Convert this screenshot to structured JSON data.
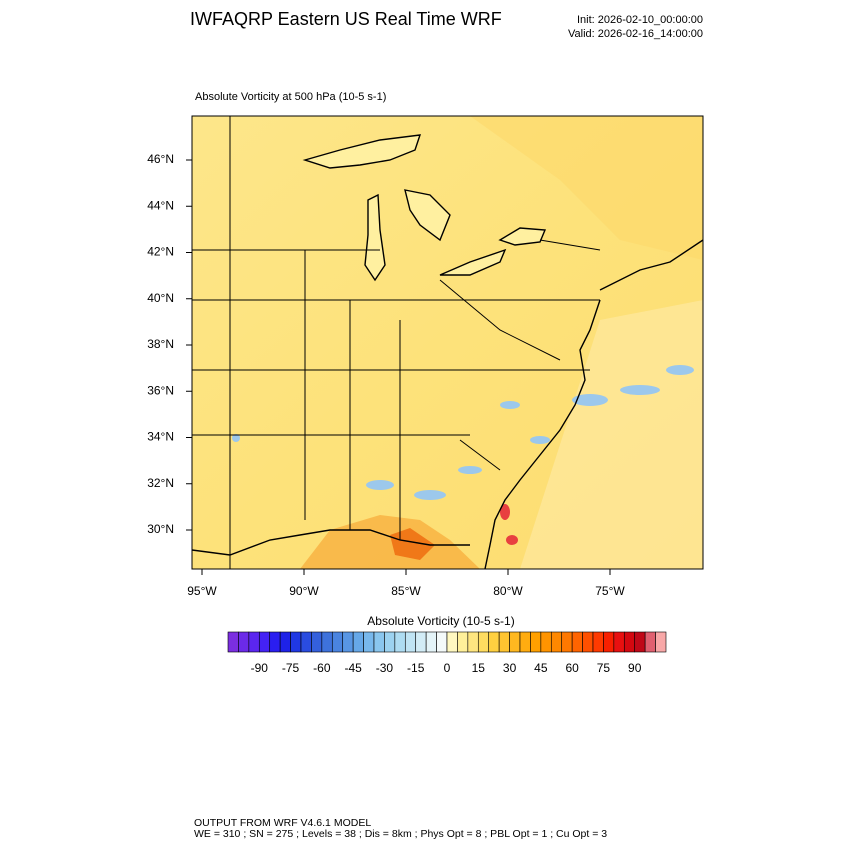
{
  "header": {
    "title": "IWFAQRP Eastern US Real Time WRF",
    "init": "Init: 2026-02-10_00:00:00",
    "valid": "Valid: 2026-02-16_14:00:00"
  },
  "map": {
    "subtitle": "Absolute Vorticity at 500 hPa   (10-5 s-1)",
    "lat_labels": [
      "46°N",
      "44°N",
      "42°N",
      "40°N",
      "38°N",
      "36°N",
      "34°N",
      "32°N",
      "30°N"
    ],
    "lon_labels": [
      "95°W",
      "90°W",
      "85°W",
      "80°W",
      "75°W"
    ]
  },
  "colorbar": {
    "title": "Absolute Vorticity  (10-5 s-1)",
    "ticks": [
      -90,
      -75,
      -60,
      -45,
      -30,
      -15,
      0,
      15,
      30,
      45,
      60,
      75,
      90
    ],
    "colors": [
      "#7b2ee0",
      "#6b2ae8",
      "#5b26f0",
      "#4422f4",
      "#2a1ef0",
      "#1e22e8",
      "#2038e4",
      "#2a4ce0",
      "#3460dc",
      "#3e72dc",
      "#4a84e0",
      "#5896e4",
      "#66a8e8",
      "#78b8ec",
      "#8ac6ee",
      "#9cd2f0",
      "#aedcf2",
      "#c0e4f4",
      "#d2ecf6",
      "#e4f4f8",
      "#f4fafa",
      "#fff8c0",
      "#fff09a",
      "#ffe680",
      "#ffdc60",
      "#ffd040",
      "#ffc430",
      "#ffb820",
      "#ffac10",
      "#ffa000",
      "#ff9400",
      "#ff8800",
      "#ff7800",
      "#ff6400",
      "#ff5000",
      "#ff3a00",
      "#f82000",
      "#e81010",
      "#d40810",
      "#c00818",
      "#e06070",
      "#f8a8a8"
    ]
  },
  "footer": {
    "line1": "OUTPUT FROM WRF V4.6.1 MODEL",
    "line2": "WE = 310 ; SN = 275 ; Levels = 38 ; Dis = 8km ; Phys Opt = 8 ; PBL Opt = 1 ; Cu Opt = 3"
  }
}
